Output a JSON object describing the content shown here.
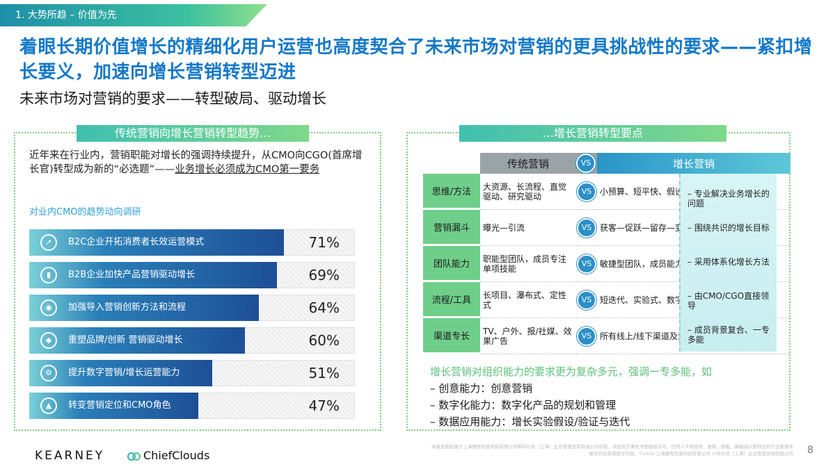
{
  "section_tag": "1. 大势所趋 – 价值为先",
  "headline": "着眼长期价值增长的精细化用户运营也高度契合了未来市场对营销的更具挑战性的要求——紧扣增长要义，加速向增长营销转型迈进",
  "subhead": "未来市场对营销的要求——转型破局、驱动增长",
  "left_panel": {
    "title": "传统营销向增长营销转型趋势…",
    "intro_plain": "近年来在行业内，营销职能对增长的强调持续提升，从CMO向CGO(首席增长官)转型成为新的“必选题”——",
    "intro_underlined": "业务增长必须成为CMO第一要务",
    "survey_title": "对业内CMO的趋势动向调研"
  },
  "chart_data": {
    "type": "bar",
    "orientation": "horizontal",
    "categories": [
      "B2C企业开拓消费者长效运营模式",
      "B2B企业加快产品营销驱动增长",
      "加强导入营销创新方法和流程",
      "重塑品牌/创新 营销驱动增长",
      "提升数字营销/增长运营能力",
      "转变营销定位和CMO角色"
    ],
    "values": [
      71,
      69,
      64,
      60,
      51,
      47
    ],
    "value_labels": [
      "71%",
      "69%",
      "64%",
      "60%",
      "51%",
      "47%"
    ],
    "icons": [
      "rocket-icon",
      "growth-chart-icon",
      "bulb-icon",
      "diamond-icon",
      "gear-icon",
      "pyramid-icon"
    ],
    "xlim": [
      0,
      100
    ]
  },
  "right_panel": {
    "title": "…增长营销转型要点",
    "header_traditional": "传统营销",
    "header_vs": "VS",
    "header_growth": "增长营销",
    "rows": [
      {
        "label": "思维/方法",
        "traditional": "大资源、长流程、直觉驱动、研究驱动",
        "vs": "VS",
        "growth": "小预算、短平快、假设驱动实验、数据驱动实验"
      },
      {
        "label": "营销漏斗",
        "traditional": "曝光—引流",
        "vs": "VS",
        "growth": "获客—促跃—留存—变现—裂变"
      },
      {
        "label": "团队能力",
        "traditional": "职能型团队，成员专注单项技能",
        "vs": "VS",
        "growth": "敏捷型团队，成员能力复合，一专多能"
      },
      {
        "label": "流程/工具",
        "traditional": "长项目、瀑布式、定性式",
        "vs": "VS",
        "growth": "短迭代、实验式、数字化、产品化"
      },
      {
        "label": "渠道专长",
        "traditional": "TV、户外、报/社媒、效果广告",
        "vs": "VS",
        "growth": "所有线上/线下渠道及潜力新渠道"
      }
    ],
    "points": [
      "– 专业解决业务增长的问题",
      "– 围绕共识的增长目标",
      "– 采用体系化增长方法",
      "– 由CMO/CGO直接领导",
      "– 成员背景复合、一专多能"
    ],
    "note_title": "增长营销对组织能力的要求更为复杂多元，强调一专多能，如",
    "note_items": [
      "– 创意能力：创意营销",
      "– 数字化能力：数字化产品的规划和管理",
      "– 数据应用能力：增长实验假设/验证与迭代"
    ]
  },
  "footer": {
    "logo_kearney": "KEARNEY",
    "logo_chiefclouds": "ChiefClouds",
    "copyright": "本报告版权属于上海推哲信息科技有限公司和科尔尼（上海）企业管理咨询有限公司所有，未经双方事先书面授权许可，任何人不得修改、复制、转载、摘编或以其他任何方式使用本报告的全部或部分内容。©2022 上海推哲信息科技有限公司 ©科尔尼（上海）企业管理咨询有限公司",
    "page_number": "8"
  },
  "colors": {
    "accent_blue": "#1478c8",
    "bar_dark": "#1d4f96",
    "green": "#6fcf8a"
  }
}
